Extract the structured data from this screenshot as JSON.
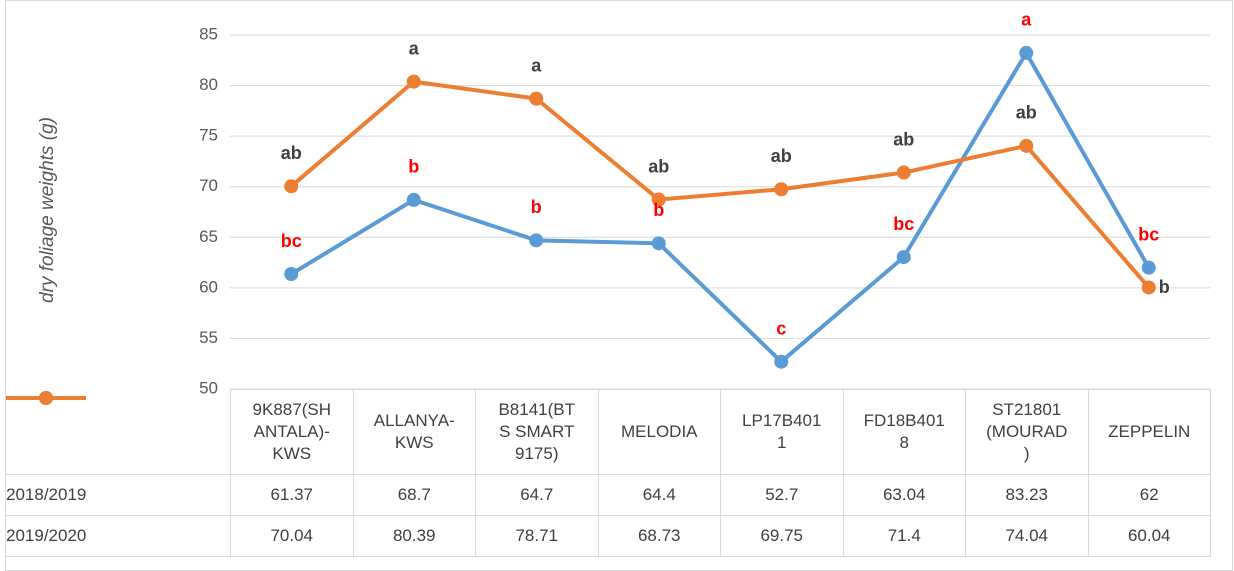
{
  "chart_data": {
    "type": "line",
    "y_label": "dry foliage weights (g)",
    "categories": [
      "9K887(SHANTALA)-KWS",
      "ALLANYA-KWS",
      "B8141(BTS SMART 9175)",
      "MELODIA",
      "LP17B4011",
      "FD18B4018",
      "ST21801 (MOURAD)",
      "ZEPPELIN"
    ],
    "series": [
      {
        "name": "2018/2019",
        "color": "#5b9bd5",
        "values": [
          61.37,
          68.7,
          64.7,
          64.4,
          52.7,
          63.04,
          83.23,
          62
        ],
        "labels": [
          "bc",
          "b",
          "b",
          "b",
          "c",
          "bc",
          "a",
          "bc"
        ],
        "label_color": "#ff0000"
      },
      {
        "name": "2019/2020",
        "color": "#ed7d31",
        "values": [
          70.04,
          80.39,
          78.71,
          68.73,
          69.75,
          71.4,
          74.04,
          60.04
        ],
        "labels": [
          "ab",
          "a",
          "a",
          "ab",
          "ab",
          "ab",
          "ab",
          "b"
        ],
        "label_color": "#404040"
      }
    ],
    "ylim": [
      50,
      85
    ],
    "yticks": [
      50,
      55,
      60,
      65,
      70,
      75,
      80,
      85
    ],
    "grid": true,
    "data_table": true
  }
}
